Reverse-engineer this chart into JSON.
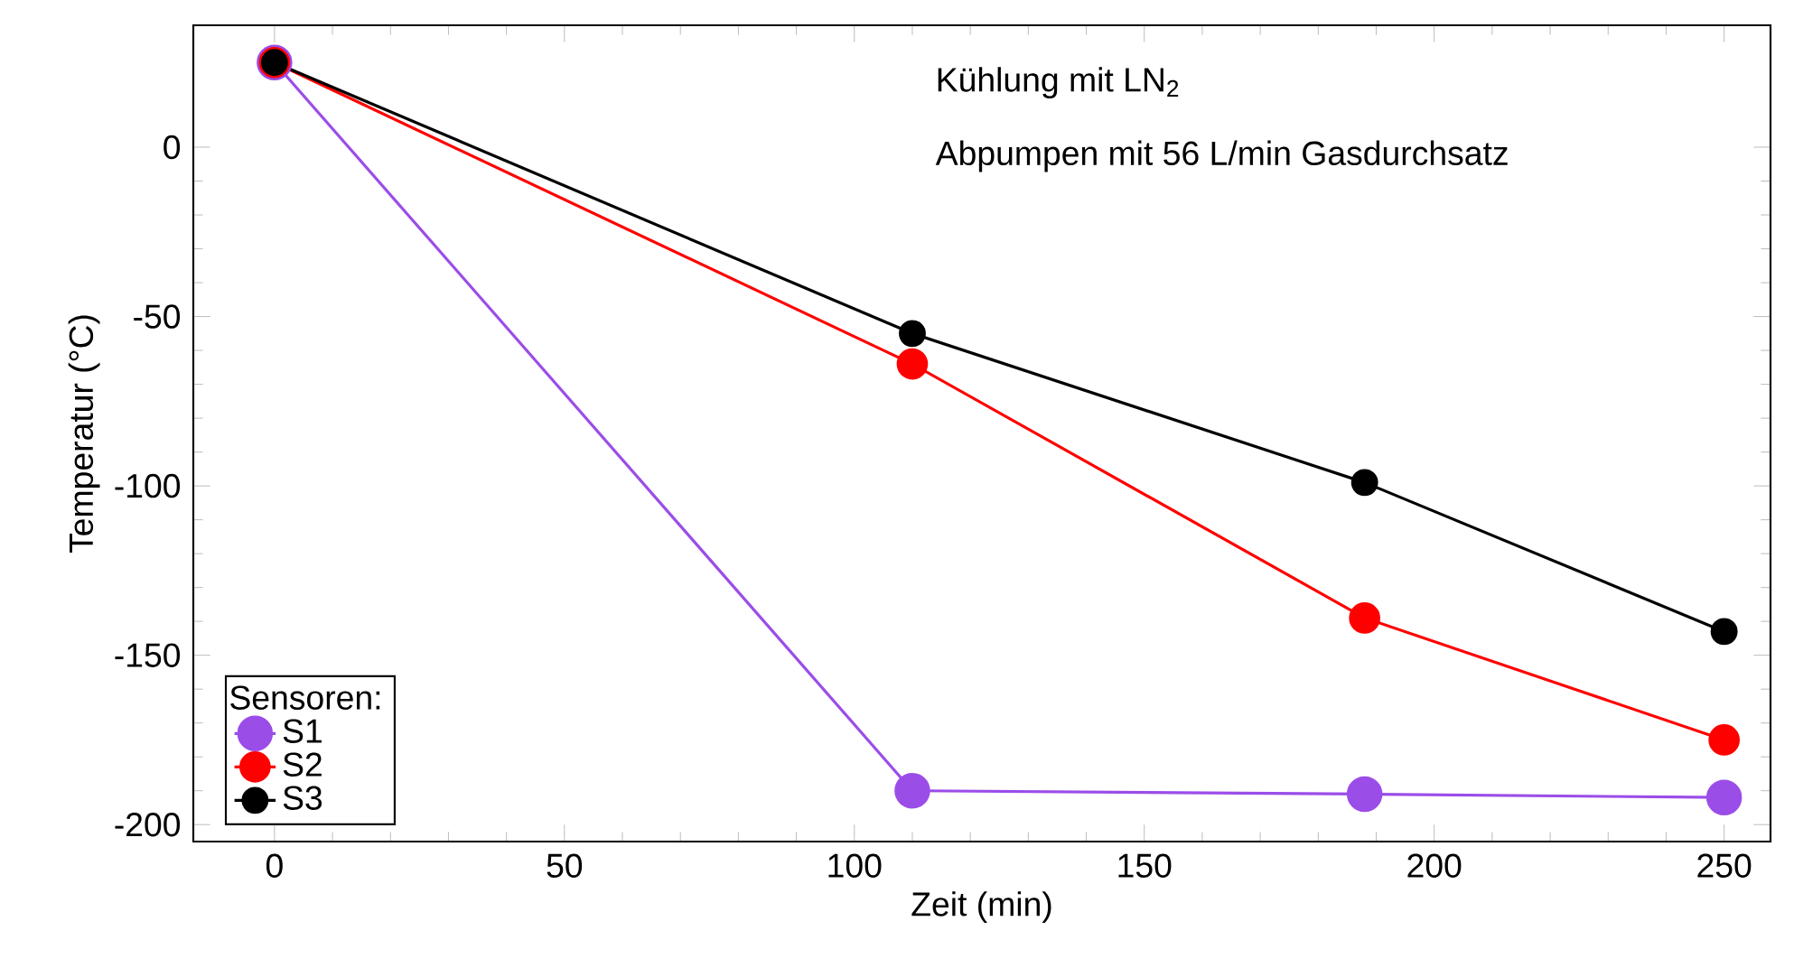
{
  "chart_data": {
    "type": "line",
    "xlabel": "Zeit (min)",
    "ylabel": "Temperatur (°C)",
    "x": [
      0,
      110,
      188,
      250
    ],
    "series": [
      {
        "name": "S1",
        "color": "#9b4de8",
        "values": [
          25,
          -190,
          -191,
          -192
        ]
      },
      {
        "name": "S2",
        "color": "#ff0000",
        "values": [
          25,
          -64,
          -139,
          -175
        ]
      },
      {
        "name": "S3",
        "color": "#000000",
        "values": [
          25,
          -55,
          -99,
          -143
        ]
      }
    ],
    "xlim": [
      -14,
      258
    ],
    "ylim": [
      -205,
      36
    ],
    "xticks": [
      0,
      50,
      100,
      150,
      200,
      250
    ],
    "yticks": [
      -200,
      -150,
      -100,
      -50,
      0
    ],
    "legend": "bottom left",
    "legend_title": "Sensoren:",
    "marker": "circle",
    "annotations": [
      "Kühlung mit LN$_{2}$",
      "Abpumpen mit 56 L/min Gasdurchsatz"
    ]
  }
}
